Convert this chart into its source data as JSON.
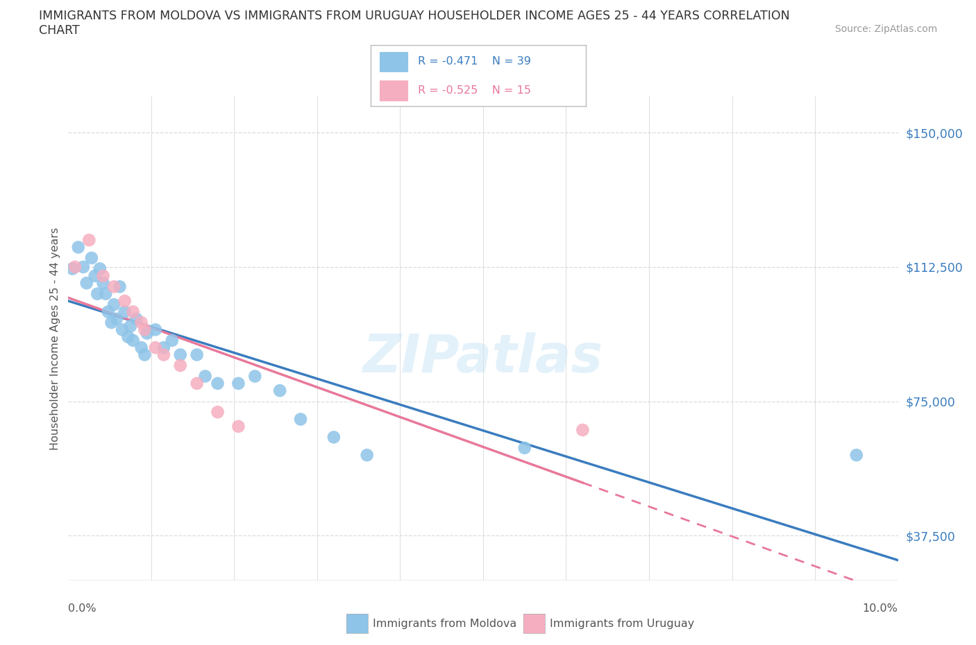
{
  "title_line1": "IMMIGRANTS FROM MOLDOVA VS IMMIGRANTS FROM URUGUAY HOUSEHOLDER INCOME AGES 25 - 44 YEARS CORRELATION",
  "title_line2": "CHART",
  "source": "Source: ZipAtlas.com",
  "ylabel": "Householder Income Ages 25 - 44 years",
  "xlim": [
    0.0,
    10.0
  ],
  "ylim": [
    25000,
    160000
  ],
  "yticks": [
    37500,
    75000,
    112500,
    150000
  ],
  "ytick_labels": [
    "$37,500",
    "$75,000",
    "$112,500",
    "$150,000"
  ],
  "dashed_line_y": 112500,
  "watermark": "ZIPatlas",
  "color_moldova": "#8ec4e8",
  "color_uruguay": "#f5aec0",
  "color_moldova_line": "#3a7cbf",
  "color_uruguay_line": "#e8789a",
  "moldova_x": [
    0.05,
    0.12,
    0.18,
    0.22,
    0.28,
    0.32,
    0.35,
    0.38,
    0.42,
    0.45,
    0.48,
    0.52,
    0.55,
    0.58,
    0.62,
    0.65,
    0.68,
    0.72,
    0.75,
    0.78,
    0.82,
    0.88,
    0.92,
    0.95,
    1.05,
    1.15,
    1.25,
    1.35,
    1.55,
    1.65,
    1.8,
    2.05,
    2.25,
    2.55,
    2.8,
    3.2,
    3.6,
    5.5,
    9.5
  ],
  "moldova_y": [
    112000,
    118000,
    112500,
    108000,
    115000,
    110000,
    105000,
    112000,
    108000,
    105000,
    100000,
    97000,
    102000,
    98000,
    107000,
    95000,
    100000,
    93000,
    96000,
    92000,
    98000,
    90000,
    88000,
    94000,
    95000,
    90000,
    92000,
    88000,
    88000,
    82000,
    80000,
    80000,
    82000,
    78000,
    70000,
    65000,
    60000,
    62000,
    60000
  ],
  "uruguay_x": [
    0.08,
    0.25,
    0.42,
    0.55,
    0.68,
    0.78,
    0.88,
    0.92,
    1.05,
    1.15,
    1.35,
    1.55,
    1.8,
    2.05,
    6.2
  ],
  "uruguay_y": [
    112500,
    120000,
    110000,
    107000,
    103000,
    100000,
    97000,
    95000,
    90000,
    88000,
    85000,
    80000,
    72000,
    68000,
    67000
  ],
  "moldova_line_x0": 0.0,
  "moldova_line_x1": 10.0,
  "uruguay_line_solid_end": 6.5,
  "uruguay_line_x1": 10.0
}
